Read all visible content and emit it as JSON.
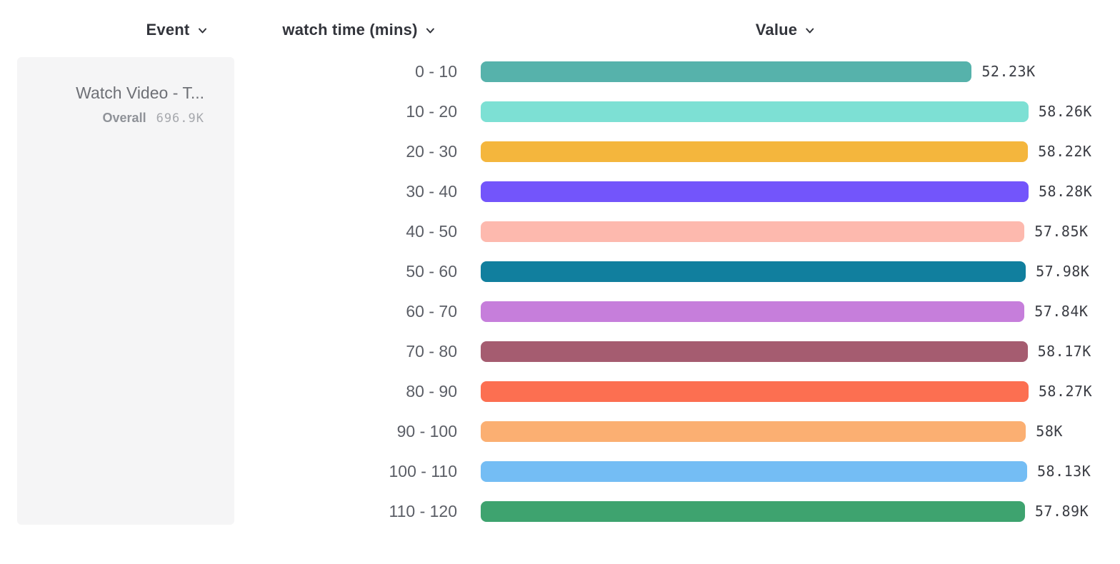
{
  "header": {
    "event_label": "Event",
    "series_label": "watch time (mins)",
    "value_label": "Value"
  },
  "event_card": {
    "title": "Watch Video - T...",
    "overall_label": "Overall",
    "overall_value": "696.9K"
  },
  "chart_data": {
    "type": "bar",
    "orientation": "horizontal",
    "title": "",
    "xlabel": "Value",
    "ylabel": "watch time (mins)",
    "categories": [
      "0 - 10",
      "10 - 20",
      "20 - 30",
      "30 - 40",
      "40 - 50",
      "50 - 60",
      "60 - 70",
      "70 - 80",
      "80 - 90",
      "90 - 100",
      "100 - 110",
      "110 - 120"
    ],
    "values": [
      52230,
      58260,
      58220,
      58280,
      57850,
      57980,
      57840,
      58170,
      58270,
      58000,
      58130,
      57890
    ],
    "value_labels": [
      "52.23K",
      "58.26K",
      "58.22K",
      "58.28K",
      "57.85K",
      "57.98K",
      "57.84K",
      "58.17K",
      "58.27K",
      "58K",
      "58.13K",
      "57.89K"
    ],
    "colors": [
      "#56b2ab",
      "#7de0d4",
      "#f4b63d",
      "#7355fb",
      "#fdb9ae",
      "#117f9e",
      "#c67edb",
      "#a55c70",
      "#fc6f51",
      "#fbaf72",
      "#74bdf4",
      "#3ea36f"
    ],
    "xlim": [
      0,
      58280
    ],
    "grid": false,
    "legend": false
  }
}
